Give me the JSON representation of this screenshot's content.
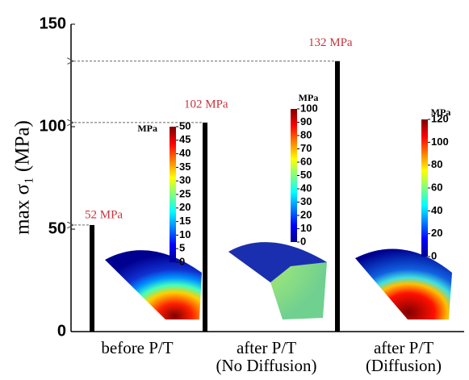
{
  "chart_data": {
    "type": "bar",
    "ylabel": "max σ₁ (MPa)",
    "categories": [
      [
        "before P/T"
      ],
      [
        "after P/T",
        "(No Diffusion)"
      ],
      [
        "after P/T",
        "(Diffusion)"
      ]
    ],
    "values": [
      52,
      102,
      132
    ],
    "value_labels": [
      "52 MPa",
      "102 MPa",
      "132 MPa"
    ],
    "color": "#000000",
    "label_color": "#c8333a",
    "ylim": [
      0,
      150
    ],
    "yticks": [
      0,
      50,
      100,
      150
    ],
    "colorbars": [
      {
        "label": "MPa",
        "lim": [
          0,
          50
        ],
        "ticks": [
          0,
          5,
          10,
          15,
          20,
          25,
          30,
          35,
          40,
          45,
          50
        ]
      },
      {
        "label": "MPa",
        "lim": [
          0,
          100
        ],
        "ticks": [
          0,
          10,
          20,
          30,
          40,
          50,
          60,
          70,
          80,
          90,
          100
        ]
      },
      {
        "label": "MPa",
        "lim": [
          0,
          120
        ],
        "ticks": [
          0,
          20,
          40,
          60,
          80,
          100,
          120
        ]
      }
    ]
  }
}
